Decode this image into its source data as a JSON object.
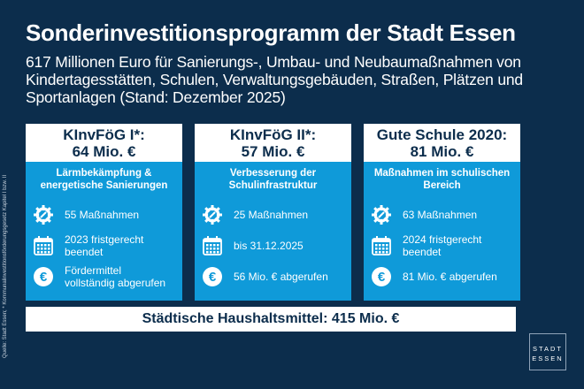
{
  "title": "Sonderinvestitionsprogramm der Stadt Essen",
  "subtitle": "617 Millionen Euro für Sanierungs-, Umbau- und Neubaumaßnahmen von Kindertagesstätten, Schulen, Verwaltungsgebäuden, Straßen, Plätzen und Sportanlagen (Stand: Dezember 2025)",
  "cards": [
    {
      "name": "KInvFöG I*:",
      "amount": "64 Mio. €",
      "focus": "Lärmbekämpfung & energetische Sanierungen",
      "measures": "55 Maßnahmen",
      "deadline": "2023 fristgerecht beendet",
      "funds": "Fördermittel vollständig abgerufen"
    },
    {
      "name": "KInvFöG II*:",
      "amount": "57 Mio. €",
      "focus": "Verbesserung der Schulinfrastruktur",
      "measures": "25 Maßnahmen",
      "deadline": "bis 31.12.2025",
      "funds": "56 Mio. € abgerufen"
    },
    {
      "name": "Gute Schule 2020:",
      "amount": "81 Mio. €",
      "focus": "Maßnahmen im schulischen Bereich",
      "measures": "63 Maßnahmen",
      "deadline": "2024 fristgerecht beendet",
      "funds": "81 Mio. € abgerufen"
    }
  ],
  "bottom": "Städtische Haushaltsmittel: 415 Mio. €",
  "source": "Quelle: Stadt Essen; * Kommunalinvestitionsförderungsgesetz Kapitel I bzw. II",
  "logo": {
    "line1": "STADT",
    "line2": "ESSEN"
  }
}
